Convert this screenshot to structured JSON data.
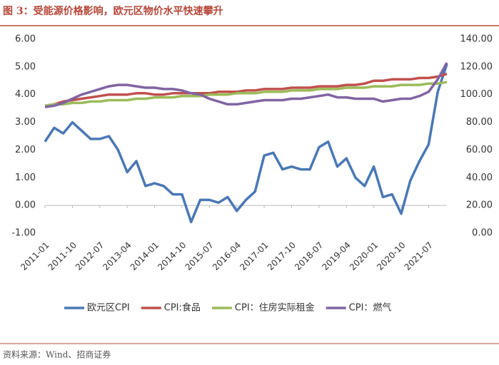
{
  "chart_data": {
    "type": "line",
    "title": "图 3：受能源价格影响，欧元区物价水平快速攀升",
    "source": "资料来源：Wind、招商证券",
    "categories": [
      "2011-01",
      null,
      null,
      "2011-10",
      null,
      null,
      "2012-07",
      null,
      null,
      "2013-04",
      null,
      null,
      "2014-01",
      null,
      null,
      "2014-10",
      null,
      null,
      "2015-07",
      null,
      null,
      "2016-04",
      null,
      null,
      "2017-01",
      null,
      null,
      "2017-10",
      null,
      null,
      "2018-07",
      null,
      null,
      "2019-04",
      null,
      null,
      "2020-01",
      null,
      null,
      "2020-10",
      null,
      null,
      "2021-07",
      null,
      null
    ],
    "series": [
      {
        "name": "欧元区CPI",
        "color": "#4a78b5",
        "axis": "y",
        "values": [
          2.3,
          2.8,
          2.6,
          3.0,
          2.7,
          2.4,
          2.4,
          2.5,
          2.0,
          1.2,
          1.6,
          0.7,
          0.8,
          0.7,
          0.4,
          0.4,
          -0.6,
          0.2,
          0.2,
          0.1,
          0.3,
          -0.2,
          0.2,
          0.5,
          1.8,
          1.9,
          1.3,
          1.4,
          1.3,
          1.3,
          2.1,
          2.3,
          1.4,
          1.7,
          1.0,
          0.7,
          1.4,
          0.3,
          0.4,
          -0.3,
          0.9,
          1.6,
          2.2,
          4.1,
          5.1
        ]
      },
      {
        "name": "CPI:食品",
        "color": "#c0504d",
        "axis": "y2",
        "values": [
          92,
          93,
          95,
          96,
          97,
          98,
          99,
          100,
          100,
          100,
          101,
          101,
          100,
          100,
          101,
          101,
          101,
          101,
          101,
          102,
          102,
          102,
          103,
          103,
          104,
          104,
          104,
          105,
          105,
          105,
          106,
          106,
          106,
          107,
          107,
          108,
          110,
          110,
          111,
          111,
          111,
          112,
          112,
          113,
          115
        ]
      },
      {
        "name": "CPI：住房实际租金",
        "color": "#9bbb59",
        "axis": "y2",
        "values": [
          92,
          93,
          93,
          94,
          94,
          95,
          95,
          96,
          96,
          96,
          97,
          97,
          98,
          98,
          98,
          99,
          99,
          99,
          100,
          100,
          100,
          101,
          101,
          101,
          102,
          102,
          102,
          103,
          103,
          103,
          104,
          104,
          104,
          105,
          105,
          105,
          106,
          106,
          106,
          107,
          107,
          107,
          108,
          108,
          109
        ]
      },
      {
        "name": "CPI：燃气",
        "color": "#8064a2",
        "axis": "y2",
        "values": [
          91,
          92,
          94,
          97,
          100,
          102,
          104,
          106,
          107,
          107,
          106,
          105,
          105,
          104,
          104,
          103,
          101,
          100,
          97,
          95,
          93,
          93,
          94,
          95,
          96,
          96,
          96,
          97,
          97,
          98,
          99,
          100,
          98,
          98,
          97,
          97,
          97,
          95,
          96,
          97,
          97,
          99,
          102,
          111,
          123
        ]
      }
    ],
    "ylim": [
      -1,
      6
    ],
    "yticks": [
      {
        "value": -1,
        "label": "-1.00"
      },
      {
        "value": 0,
        "label": "0.00"
      },
      {
        "value": 1,
        "label": "1.00"
      },
      {
        "value": 2,
        "label": "2.00"
      },
      {
        "value": 3,
        "label": "3.00"
      },
      {
        "value": 4,
        "label": "4.00"
      },
      {
        "value": 5,
        "label": "5.00"
      },
      {
        "value": 6,
        "label": "6.00"
      }
    ],
    "y2lim": [
      0,
      140
    ],
    "y2ticks": [
      {
        "value": 0,
        "label": "0.00"
      },
      {
        "value": 20,
        "label": "20.00"
      },
      {
        "value": 40,
        "label": "40.00"
      },
      {
        "value": 60,
        "label": "60.00"
      },
      {
        "value": 80,
        "label": "80.00"
      },
      {
        "value": 100,
        "label": "100.00"
      },
      {
        "value": 120,
        "label": "120.00"
      },
      {
        "value": 140,
        "label": "140.00"
      }
    ],
    "legend": "bottom"
  }
}
